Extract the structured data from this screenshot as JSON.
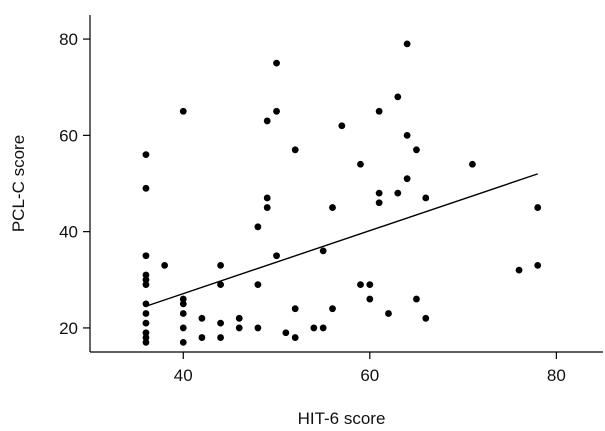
{
  "chart_data": {
    "type": "scatter",
    "xlabel": "HIT-6 score",
    "ylabel": "PCL-C score",
    "xlim": [
      30,
      85
    ],
    "ylim": [
      15,
      85
    ],
    "xticks": [
      40,
      60,
      80
    ],
    "yticks": [
      20,
      40,
      60,
      80
    ],
    "grid": false,
    "legend": "none",
    "point_color": "#000000",
    "points": [
      {
        "x": 36,
        "y": 56
      },
      {
        "x": 36,
        "y": 49
      },
      {
        "x": 36,
        "y": 35
      },
      {
        "x": 36,
        "y": 31
      },
      {
        "x": 36,
        "y": 30
      },
      {
        "x": 36,
        "y": 29
      },
      {
        "x": 36,
        "y": 25
      },
      {
        "x": 36,
        "y": 23
      },
      {
        "x": 36,
        "y": 21
      },
      {
        "x": 36,
        "y": 19
      },
      {
        "x": 36,
        "y": 18
      },
      {
        "x": 36,
        "y": 17
      },
      {
        "x": 38,
        "y": 33
      },
      {
        "x": 40,
        "y": 65
      },
      {
        "x": 40,
        "y": 26
      },
      {
        "x": 40,
        "y": 25
      },
      {
        "x": 40,
        "y": 23
      },
      {
        "x": 40,
        "y": 20
      },
      {
        "x": 40,
        "y": 17
      },
      {
        "x": 42,
        "y": 22
      },
      {
        "x": 42,
        "y": 18
      },
      {
        "x": 44,
        "y": 33
      },
      {
        "x": 44,
        "y": 29
      },
      {
        "x": 44,
        "y": 21
      },
      {
        "x": 44,
        "y": 18
      },
      {
        "x": 46,
        "y": 22
      },
      {
        "x": 46,
        "y": 20
      },
      {
        "x": 48,
        "y": 41
      },
      {
        "x": 48,
        "y": 29
      },
      {
        "x": 48,
        "y": 20
      },
      {
        "x": 49,
        "y": 63
      },
      {
        "x": 49,
        "y": 47
      },
      {
        "x": 49,
        "y": 45
      },
      {
        "x": 50,
        "y": 75
      },
      {
        "x": 50,
        "y": 65
      },
      {
        "x": 50,
        "y": 35
      },
      {
        "x": 51,
        "y": 19
      },
      {
        "x": 52,
        "y": 57
      },
      {
        "x": 52,
        "y": 24
      },
      {
        "x": 52,
        "y": 18
      },
      {
        "x": 54,
        "y": 20
      },
      {
        "x": 55,
        "y": 36
      },
      {
        "x": 55,
        "y": 20
      },
      {
        "x": 56,
        "y": 45
      },
      {
        "x": 56,
        "y": 24
      },
      {
        "x": 57,
        "y": 62
      },
      {
        "x": 59,
        "y": 54
      },
      {
        "x": 59,
        "y": 29
      },
      {
        "x": 60,
        "y": 29
      },
      {
        "x": 60,
        "y": 26
      },
      {
        "x": 61,
        "y": 65
      },
      {
        "x": 61,
        "y": 48
      },
      {
        "x": 61,
        "y": 46
      },
      {
        "x": 62,
        "y": 23
      },
      {
        "x": 63,
        "y": 68
      },
      {
        "x": 63,
        "y": 48
      },
      {
        "x": 64,
        "y": 79
      },
      {
        "x": 64,
        "y": 60
      },
      {
        "x": 64,
        "y": 51
      },
      {
        "x": 65,
        "y": 57
      },
      {
        "x": 65,
        "y": 26
      },
      {
        "x": 66,
        "y": 47
      },
      {
        "x": 66,
        "y": 22
      },
      {
        "x": 71,
        "y": 54
      },
      {
        "x": 76,
        "y": 32
      },
      {
        "x": 78,
        "y": 45
      },
      {
        "x": 78,
        "y": 33
      }
    ],
    "fit_line": {
      "x": [
        36,
        78
      ],
      "y": [
        24.5,
        52
      ]
    }
  }
}
